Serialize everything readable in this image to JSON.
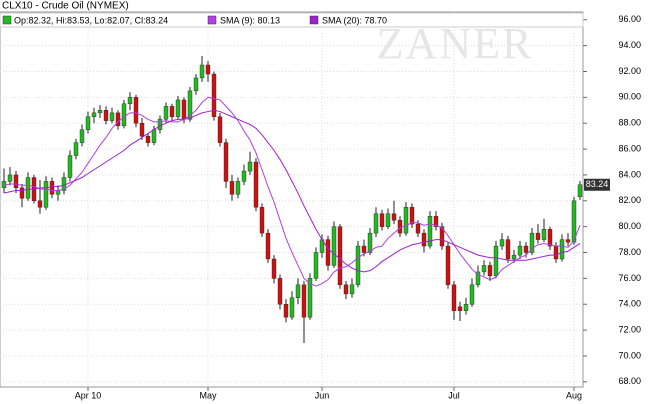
{
  "chart_data": {
    "type": "candlestick",
    "title": "CLX10 - Crude Oil (NYMEX)",
    "ohlc_legend": "Op:82.32, Hi:83.53, Lo:82.07, Cl:83.24",
    "watermark": "ZANER",
    "up_color": "#22b922",
    "down_color": "#cc1111",
    "grid": true,
    "categories": [
      null,
      null,
      null,
      null,
      null,
      null,
      null,
      null,
      null,
      null,
      null,
      null,
      null,
      null,
      "Apr 10",
      null,
      null,
      null,
      null,
      null,
      null,
      null,
      null,
      null,
      null,
      null,
      null,
      null,
      null,
      null,
      null,
      null,
      null,
      null,
      "May",
      null,
      null,
      null,
      null,
      null,
      null,
      null,
      null,
      null,
      null,
      null,
      null,
      null,
      null,
      null,
      null,
      null,
      null,
      "Jun",
      null,
      null,
      null,
      null,
      null,
      null,
      null,
      null,
      null,
      null,
      null,
      null,
      null,
      null,
      null,
      null,
      null,
      null,
      null,
      null,
      null,
      "Jul",
      null,
      null,
      null,
      null,
      null,
      null,
      null,
      null,
      null,
      null,
      null,
      null,
      null,
      null,
      null,
      null,
      null,
      null,
      null,
      "Aug",
      null
    ],
    "open": [
      83.0,
      83.5,
      84.0,
      83.0,
      82.2,
      83.8,
      82.0,
      81.5,
      83.5,
      82.5,
      82.8,
      83.8,
      85.5,
      86.5,
      87.5,
      88.5,
      88.8,
      89.0,
      88.2,
      88.8,
      87.8,
      89.5,
      90.0,
      88.0,
      87.0,
      86.5,
      87.5,
      88.3,
      89.3,
      88.5,
      89.8,
      88.3,
      90.5,
      91.5,
      92.5,
      91.8,
      88.5,
      86.5,
      83.5,
      82.5,
      83.5,
      84.3,
      85.0,
      81.5,
      79.5,
      77.5,
      76.0,
      74.0,
      73.0,
      74.5,
      75.5,
      73.0,
      76.0,
      78.0,
      79.0,
      77.0,
      80.0,
      75.5,
      74.8,
      75.5,
      78.5,
      78.0,
      79.5,
      81.0,
      80.0,
      81.0,
      80.5,
      79.5,
      81.5,
      80.2,
      79.5,
      78.5,
      80.8,
      80.0,
      78.5,
      75.5,
      73.8,
      73.5,
      74.0,
      75.5,
      76.5,
      77.0,
      76.2,
      78.5,
      79.0,
      77.5,
      77.8,
      78.5,
      78.0,
      79.5,
      79.0,
      79.8,
      78.5,
      77.5,
      79.0,
      78.8,
      82.32
    ],
    "high": [
      84.5,
      84.6,
      84.3,
      83.3,
      84.2,
      84.0,
      83.6,
      83.9,
      83.8,
      83.2,
      84.2,
      85.9,
      86.8,
      87.9,
      88.9,
      89.2,
      89.4,
      89.3,
      89.2,
      89.0,
      89.8,
      90.4,
      90.2,
      88.4,
      87.2,
      87.8,
      88.6,
      89.6,
      89.5,
      90.1,
      90.0,
      90.8,
      91.8,
      93.2,
      92.8,
      92.0,
      88.8,
      86.8,
      84.0,
      83.8,
      84.8,
      85.8,
      85.3,
      81.8,
      79.8,
      77.8,
      76.3,
      74.4,
      75.0,
      76.0,
      75.8,
      76.4,
      78.4,
      79.4,
      79.3,
      80.4,
      80.2,
      75.8,
      76.0,
      78.9,
      79.0,
      79.9,
      81.5,
      81.3,
      81.4,
      82.0,
      80.8,
      81.9,
      81.8,
      80.5,
      79.8,
      81.2,
      81.2,
      80.3,
      78.8,
      75.8,
      74.2,
      74.5,
      76.0,
      77.0,
      77.4,
      77.3,
      78.9,
      79.5,
      79.3,
      78.2,
      78.9,
      78.8,
      79.9,
      80.2,
      80.6,
      80.0,
      78.8,
      79.4,
      79.5,
      82.3,
      83.53
    ],
    "low": [
      82.6,
      83.2,
      82.6,
      81.5,
      82.0,
      81.8,
      81.0,
      81.3,
      82.2,
      82.0,
      82.5,
      83.5,
      85.2,
      86.2,
      87.2,
      88.0,
      88.4,
      87.9,
      88.0,
      87.5,
      87.6,
      89.0,
      87.7,
      86.7,
      86.2,
      86.3,
      87.2,
      88.0,
      88.2,
      88.3,
      88.0,
      88.1,
      90.2,
      91.2,
      91.2,
      88.2,
      86.2,
      83.0,
      82.0,
      82.2,
      83.2,
      84.0,
      81.2,
      79.2,
      77.2,
      75.6,
      73.6,
      72.6,
      72.8,
      74.0,
      71.0,
      72.8,
      75.8,
      77.6,
      76.6,
      76.8,
      75.2,
      74.4,
      74.5,
      75.3,
      77.7,
      77.8,
      79.2,
      79.7,
      79.8,
      80.2,
      79.2,
      79.3,
      79.9,
      79.2,
      78.0,
      78.3,
      79.7,
      78.2,
      75.2,
      72.8,
      72.7,
      73.2,
      73.8,
      75.3,
      76.2,
      75.8,
      76.0,
      78.2,
      77.2,
      77.2,
      77.5,
      77.6,
      77.8,
      78.7,
      78.8,
      78.2,
      77.2,
      77.3,
      78.5,
      78.6,
      82.07
    ],
    "close": [
      83.5,
      84.0,
      83.0,
      82.2,
      83.8,
      82.0,
      81.5,
      83.5,
      82.5,
      82.8,
      83.8,
      85.5,
      86.5,
      87.5,
      88.5,
      88.8,
      89.0,
      88.2,
      88.8,
      87.8,
      89.5,
      90.0,
      88.0,
      87.0,
      86.5,
      87.5,
      88.3,
      89.3,
      88.5,
      89.8,
      88.3,
      90.5,
      91.5,
      92.5,
      91.8,
      88.5,
      86.5,
      83.5,
      82.5,
      83.5,
      84.3,
      85.0,
      81.5,
      79.5,
      77.5,
      76.0,
      74.0,
      73.0,
      74.5,
      75.5,
      73.0,
      76.0,
      78.0,
      79.0,
      77.0,
      80.0,
      75.5,
      74.8,
      75.5,
      78.5,
      78.0,
      79.5,
      81.0,
      80.0,
      81.0,
      80.5,
      79.5,
      81.5,
      80.2,
      79.5,
      78.5,
      80.8,
      80.0,
      78.5,
      75.5,
      73.5,
      73.5,
      74.0,
      75.5,
      76.5,
      77.0,
      76.2,
      78.5,
      79.0,
      77.5,
      77.8,
      78.5,
      78.0,
      79.5,
      79.0,
      79.8,
      78.5,
      77.5,
      79.0,
      78.8,
      82.0,
      83.24
    ],
    "series": [
      {
        "name": "SMA (9): 80.13",
        "color": "#b13ee8",
        "values": [
          83.2,
          83.3,
          83.3,
          83.2,
          83.2,
          83.1,
          82.9,
          82.9,
          82.8,
          82.8,
          82.9,
          83.2,
          83.7,
          84.2,
          84.9,
          85.6,
          86.3,
          86.9,
          87.6,
          88.1,
          88.5,
          88.8,
          88.8,
          88.6,
          88.3,
          88.1,
          88.1,
          88.2,
          88.1,
          88.1,
          88.3,
          88.6,
          89.0,
          89.6,
          90.0,
          89.9,
          89.8,
          89.3,
          88.8,
          88.2,
          87.4,
          86.7,
          85.7,
          84.4,
          83.1,
          81.9,
          80.5,
          79.1,
          78.0,
          77.0,
          76.0,
          75.6,
          75.4,
          75.6,
          75.9,
          76.5,
          76.8,
          76.9,
          77.2,
          77.6,
          77.9,
          78.1,
          78.4,
          78.5,
          79.1,
          79.5,
          79.9,
          80.1,
          80.3,
          80.3,
          80.1,
          80.2,
          80.1,
          79.9,
          79.3,
          78.6,
          77.9,
          77.3,
          76.7,
          76.3,
          76.1,
          75.9,
          76.1,
          76.7,
          77.0,
          77.3,
          77.6,
          77.8,
          78.3,
          78.6,
          78.7,
          78.6,
          78.5,
          78.5,
          78.4,
          78.9,
          80.13
        ]
      },
      {
        "name": "SMA (20): 78.70",
        "color": "#a020d0",
        "values": [
          82.6,
          82.7,
          82.8,
          82.8,
          82.9,
          82.9,
          83.0,
          83.0,
          83.1,
          83.1,
          83.2,
          83.4,
          83.6,
          83.8,
          84.1,
          84.4,
          84.7,
          85.0,
          85.3,
          85.6,
          85.9,
          86.3,
          86.6,
          86.9,
          87.2,
          87.5,
          87.8,
          88.0,
          88.2,
          88.3,
          88.3,
          88.4,
          88.6,
          88.8,
          88.9,
          89.0,
          88.9,
          88.7,
          88.5,
          88.3,
          88.1,
          87.9,
          87.6,
          87.1,
          86.5,
          85.9,
          85.2,
          84.4,
          83.5,
          82.6,
          81.6,
          80.7,
          79.8,
          79.0,
          78.3,
          77.9,
          77.5,
          77.1,
          76.8,
          76.6,
          76.5,
          76.6,
          76.9,
          77.3,
          77.6,
          77.9,
          78.2,
          78.4,
          78.6,
          78.7,
          78.8,
          78.9,
          79.0,
          79.0,
          78.8,
          78.6,
          78.4,
          78.2,
          78.0,
          77.8,
          77.7,
          77.6,
          77.6,
          77.5,
          77.4,
          77.4,
          77.4,
          77.4,
          77.5,
          77.6,
          77.7,
          77.8,
          77.8,
          78.0,
          78.1,
          78.4,
          78.7
        ]
      }
    ],
    "ylim": [
      67.6,
      96.6
    ],
    "yticks": [
      {
        "value": 68,
        "label": "68.00"
      },
      {
        "value": 70,
        "label": "70.00"
      },
      {
        "value": 72,
        "label": "72.00"
      },
      {
        "value": 74,
        "label": "74.00"
      },
      {
        "value": 76,
        "label": "76.00"
      },
      {
        "value": 78,
        "label": "78.00"
      },
      {
        "value": 80,
        "label": "80.00"
      },
      {
        "value": 82,
        "label": "82.00"
      },
      {
        "value": 84,
        "label": "84.00"
      },
      {
        "value": 86,
        "label": "86.00"
      },
      {
        "value": 88,
        "label": "88.00"
      },
      {
        "value": 90,
        "label": "90.00"
      },
      {
        "value": 92,
        "label": "92.00"
      },
      {
        "value": 94,
        "label": "94.00"
      },
      {
        "value": 96,
        "label": "96.00"
      }
    ]
  }
}
